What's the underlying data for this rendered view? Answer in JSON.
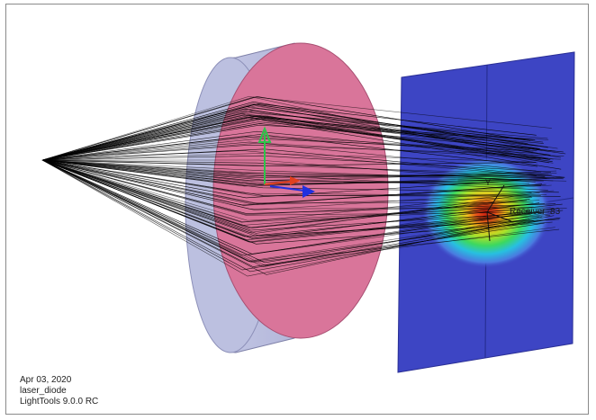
{
  "app": "LightTools",
  "viewport": {
    "info_date": "Apr 03, 2020",
    "info_model": "laser_diode",
    "info_version": "LightTools 9.0.0 RC"
  },
  "scene": {
    "receiver_label": "Receiver_83",
    "lens_color_front": "#d9759a",
    "lens_color_side": "#b4b8d8",
    "receiver_color": "#3d45c4",
    "ray_color": "#000000",
    "axis_colors": {
      "x": "#e04020",
      "y": "#2ec44a",
      "z": "#2030e0"
    }
  }
}
